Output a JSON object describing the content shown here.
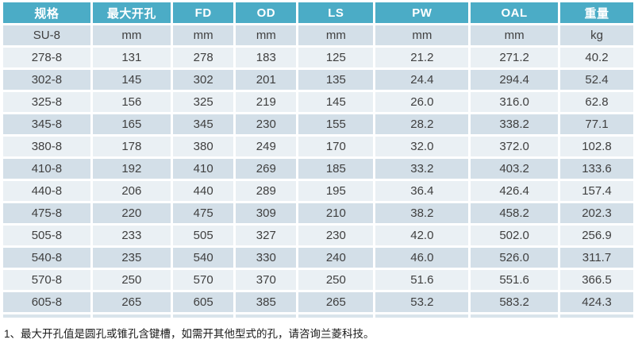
{
  "table": {
    "columns": [
      "规格",
      "最大开孔",
      "FD",
      "OD",
      "LS",
      "PW",
      "OAL",
      "重量"
    ],
    "column_widths_pct": [
      14.2,
      12.7,
      9.9,
      9.8,
      12.2,
      15.1,
      14.2,
      11.9
    ],
    "unit_row": [
      "SU-8",
      "mm",
      "mm",
      "mm",
      "mm",
      "mm",
      "mm",
      "kg"
    ],
    "rows": [
      [
        "278-8",
        "131",
        "278",
        "183",
        "125",
        "21.2",
        "271.2",
        "40.2"
      ],
      [
        "302-8",
        "145",
        "302",
        "201",
        "135",
        "24.4",
        "294.4",
        "52.4"
      ],
      [
        "325-8",
        "156",
        "325",
        "219",
        "145",
        "26.0",
        "316.0",
        "62.8"
      ],
      [
        "345-8",
        "165",
        "345",
        "230",
        "155",
        "28.2",
        "338.2",
        "77.1"
      ],
      [
        "380-8",
        "178",
        "380",
        "249",
        "170",
        "32.0",
        "372.0",
        "102.8"
      ],
      [
        "410-8",
        "192",
        "410",
        "269",
        "185",
        "33.2",
        "403.2",
        "133.6"
      ],
      [
        "440-8",
        "206",
        "440",
        "289",
        "195",
        "36.4",
        "426.4",
        "157.4"
      ],
      [
        "475-8",
        "220",
        "475",
        "309",
        "210",
        "38.2",
        "458.2",
        "202.3"
      ],
      [
        "505-8",
        "233",
        "505",
        "327",
        "230",
        "42.0",
        "502.0",
        "256.9"
      ],
      [
        "540-8",
        "235",
        "540",
        "330",
        "240",
        "46.0",
        "526.0",
        "311.7"
      ],
      [
        "570-8",
        "250",
        "570",
        "370",
        "250",
        "51.6",
        "551.6",
        "366.5"
      ],
      [
        "605-8",
        "265",
        "605",
        "385",
        "265",
        "53.2",
        "583.2",
        "424.3"
      ]
    ]
  },
  "note": "1、最大开孔值是圆孔或锥孔含键槽，如需开其他型式的孔，请咨询兰菱科技。",
  "colors": {
    "header_bg": "#4BACC6",
    "header_text": "#FFFFFF",
    "band_dark": "#D3DFE8",
    "band_light": "#EAF0F4",
    "cell_text": "#3F3F3F"
  }
}
